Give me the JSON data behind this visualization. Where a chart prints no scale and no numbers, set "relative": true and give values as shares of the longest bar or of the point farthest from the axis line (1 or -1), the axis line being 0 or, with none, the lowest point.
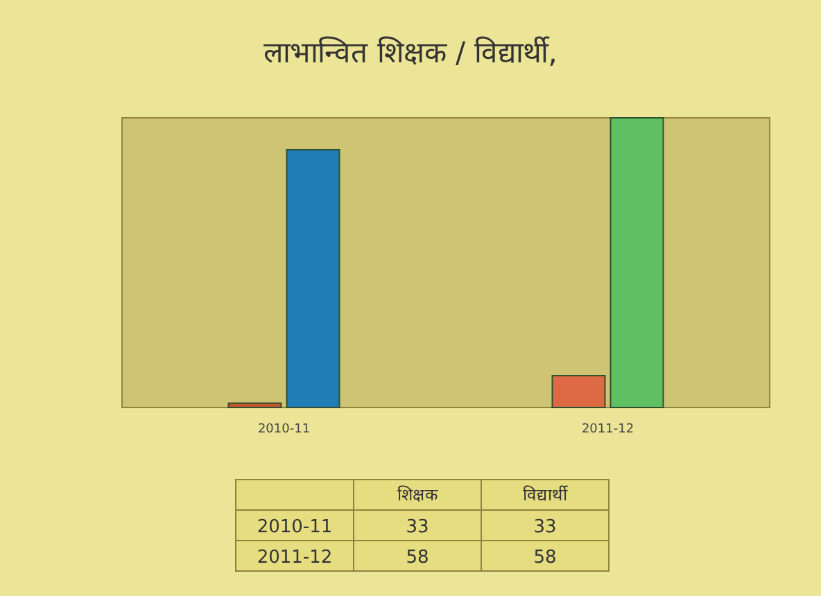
{
  "chart_data": {
    "type": "bar",
    "title": "लाभान्वित शिक्षक / विद्यार्थी,",
    "categories": [
      "2010-11",
      "2011-12"
    ],
    "relative": true,
    "series": [
      {
        "colors": [
          "#c4552f",
          "#de6a45"
        ],
        "values": [
          0.015,
          0.11
        ]
      },
      {
        "colors": [
          "#1f7db3",
          "#5fc063"
        ],
        "values": [
          0.89,
          1
        ]
      }
    ],
    "annotations": [
      "शिक्षक",
      "विद्यार्थी",
      "2010-11",
      "33",
      "33",
      "2011-12",
      "58",
      "58"
    ]
  }
}
